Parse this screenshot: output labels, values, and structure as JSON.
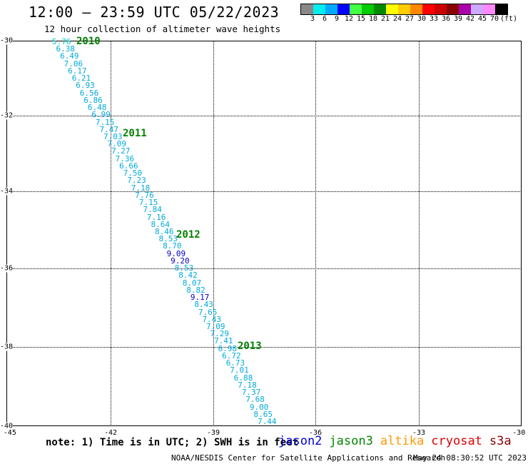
{
  "title": "12:00 — 23:59 UTC 05/22/2023",
  "subtitle": "12 hour collection of altimeter wave heights",
  "legend": {
    "colors": [
      "#888888",
      "#00eeee",
      "#00aaff",
      "#0000ff",
      "#44ff44",
      "#00cc00",
      "#008800",
      "#ffff00",
      "#ffcc00",
      "#ff8800",
      "#ff0000",
      "#cc0000",
      "#880000",
      "#aa00aa",
      "#ccaaff",
      "#ff88ff",
      "#000000"
    ],
    "labels": [
      "3",
      "6",
      "9",
      "12",
      "15",
      "18",
      "21",
      "24",
      "27",
      "30",
      "33",
      "36",
      "39",
      "42",
      "45",
      "70",
      "(ft)"
    ]
  },
  "axes": {
    "lat_labels": [
      "-30",
      "-32",
      "-34",
      "-36",
      "-38",
      "-40"
    ],
    "lon_labels": [
      "-45",
      "-42",
      "-39",
      "-36",
      "-33",
      "-30"
    ]
  },
  "year_labels": [
    "2010",
    "2011",
    "2012",
    "2013"
  ],
  "points": [
    {
      "v": "5.76",
      "c": "#00cccc"
    },
    {
      "v": "6.38",
      "c": "#00aadd"
    },
    {
      "v": "6.49",
      "c": "#00aadd"
    },
    {
      "v": "7.06",
      "c": "#00aadd"
    },
    {
      "v": "6.17",
      "c": "#00aadd"
    },
    {
      "v": "6.21",
      "c": "#00aadd"
    },
    {
      "v": "6.93",
      "c": "#00aadd"
    },
    {
      "v": "6.56",
      "c": "#00aadd"
    },
    {
      "v": "6.86",
      "c": "#00aadd"
    },
    {
      "v": "6.48",
      "c": "#00aadd"
    },
    {
      "v": "6.99",
      "c": "#00aadd"
    },
    {
      "v": "7.15",
      "c": "#00aadd"
    },
    {
      "v": "7.47",
      "c": "#00aadd"
    },
    {
      "v": "7.03",
      "c": "#00aadd"
    },
    {
      "v": "7.09",
      "c": "#00aadd"
    },
    {
      "v": "7.27",
      "c": "#00aadd"
    },
    {
      "v": "7.36",
      "c": "#00aadd"
    },
    {
      "v": "6.66",
      "c": "#00aadd"
    },
    {
      "v": "7.50",
      "c": "#00aadd"
    },
    {
      "v": "7.23",
      "c": "#00aadd"
    },
    {
      "v": "7.18",
      "c": "#00aadd"
    },
    {
      "v": "7.76",
      "c": "#00aadd"
    },
    {
      "v": "7.15",
      "c": "#00aadd"
    },
    {
      "v": "7.84",
      "c": "#00aadd"
    },
    {
      "v": "7.16",
      "c": "#00aadd"
    },
    {
      "v": "8.64",
      "c": "#00aadd"
    },
    {
      "v": "8.46",
      "c": "#00aadd"
    },
    {
      "v": "8.53",
      "c": "#00aadd"
    },
    {
      "v": "8.70",
      "c": "#00aadd"
    },
    {
      "v": "9.09",
      "c": "#0000cc"
    },
    {
      "v": "9.20",
      "c": "#0000cc"
    },
    {
      "v": "8.53",
      "c": "#00aadd"
    },
    {
      "v": "8.42",
      "c": "#00aadd"
    },
    {
      "v": "8.07",
      "c": "#00aadd"
    },
    {
      "v": "8.82",
      "c": "#00aadd"
    },
    {
      "v": "9.17",
      "c": "#0000cc"
    },
    {
      "v": "8.43",
      "c": "#00aadd"
    },
    {
      "v": "7.65",
      "c": "#00aadd"
    },
    {
      "v": "7.43",
      "c": "#00aadd"
    },
    {
      "v": "7.09",
      "c": "#00aadd"
    },
    {
      "v": "7.29",
      "c": "#00aadd"
    },
    {
      "v": "7.41",
      "c": "#00aadd"
    },
    {
      "v": "6.98",
      "c": "#00aadd"
    },
    {
      "v": "6.72",
      "c": "#00aadd"
    },
    {
      "v": "6.73",
      "c": "#00aadd"
    },
    {
      "v": "7.01",
      "c": "#00aadd"
    },
    {
      "v": "6.88",
      "c": "#00aadd"
    },
    {
      "v": "7.18",
      "c": "#00aadd"
    },
    {
      "v": "7.37",
      "c": "#00aadd"
    },
    {
      "v": "7.68",
      "c": "#00aadd"
    },
    {
      "v": "9.00",
      "c": "#00aadd"
    },
    {
      "v": "8.65",
      "c": "#00aadd"
    },
    {
      "v": "7.44",
      "c": "#00aadd"
    }
  ],
  "note": "note: 1) Time is in UTC; 2) SWH is in feet",
  "satellites": [
    {
      "name": "jason2",
      "color": "#0000dd"
    },
    {
      "name": "jason3",
      "color": "#008800"
    },
    {
      "name": "altika",
      "color": "#ff9900"
    },
    {
      "name": "cryosat",
      "color": "#dd0000"
    },
    {
      "name": "s3a",
      "color": "#880000"
    }
  ],
  "footer": {
    "credit": "NOAA/NESDIS Center for Satellite Applications and Research",
    "timestamp": "May 24 08:30:52 UTC 2023"
  }
}
